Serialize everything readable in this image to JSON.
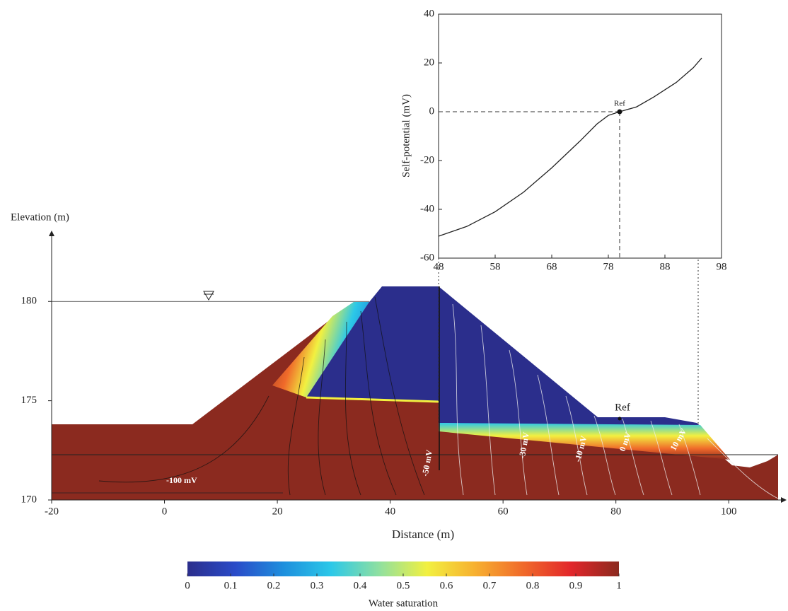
{
  "chart_data": [
    {
      "type": "section",
      "xlabel": "Distance (m)",
      "ylabel": "Elevation (m)",
      "xlim": [
        -20,
        110
      ],
      "ylim": [
        170,
        183.5
      ],
      "xticks": [
        -20,
        0,
        20,
        40,
        60,
        80,
        100
      ],
      "yticks": [
        170,
        175,
        180
      ],
      "water_level": 180,
      "annotations": [
        "-100 mV",
        "-50 mV",
        "-30 mV",
        "-10 mV",
        "0 mV",
        "10 mV",
        "Ref"
      ],
      "colorbar": {
        "label": "Water saturation",
        "lim": [
          0,
          1
        ],
        "ticks": [
          0,
          0.1,
          0.2,
          0.3,
          0.4,
          0.5,
          0.6,
          0.7,
          0.8,
          0.9,
          1
        ],
        "colors": [
          "#2b2e8c",
          "#2a4bc8",
          "#1e8fdd",
          "#2cc8e8",
          "#8fe0a0",
          "#f2f040",
          "#f7b030",
          "#f06a2a",
          "#e2262a",
          "#8b2a1f"
        ]
      }
    },
    {
      "type": "line",
      "ylabel": "Self-potential (mV)",
      "xlim": [
        48,
        98
      ],
      "ylim": [
        -60,
        40
      ],
      "xticks": [
        48,
        58,
        68,
        78,
        88,
        98
      ],
      "yticks": [
        -60,
        -40,
        -20,
        0,
        20,
        40
      ],
      "x": [
        48,
        53,
        58,
        63,
        68,
        73,
        76,
        78,
        80,
        83,
        86,
        90,
        93,
        94.5
      ],
      "series": [
        {
          "color": "#222222",
          "values": [
            -51,
            -47,
            -41,
            -33,
            -23,
            -12,
            -5,
            -1.5,
            0,
            2,
            6,
            12,
            18,
            22
          ]
        }
      ],
      "ref": {
        "label": "Ref",
        "x": 80,
        "y": 0
      }
    }
  ]
}
